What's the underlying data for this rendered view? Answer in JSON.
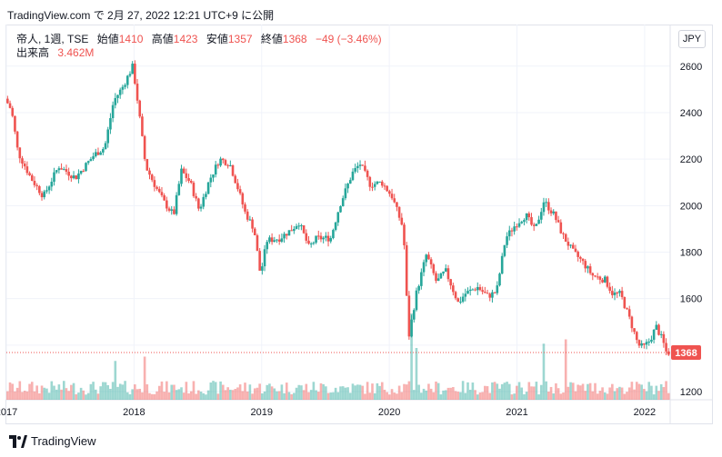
{
  "header": {
    "caption": "TradingView.com で 2月 27, 2022 12:21 UTC+9 に公開"
  },
  "legend": {
    "symbol": "帝人, 1週, TSE",
    "open_label": "始値",
    "open": "1410",
    "high_label": "高値",
    "high": "1423",
    "low_label": "安値",
    "low": "1357",
    "close_label": "終値",
    "close": "1368",
    "change": "−49 (−3.46%)",
    "volume_label": "出来高",
    "volume": "3.462M"
  },
  "currency_button": "JPY",
  "footer": {
    "brand": "TradingView"
  },
  "colors": {
    "up": "#26a69a",
    "down": "#ef5350",
    "grid": "#f0f3fa",
    "axis_text": "#131722"
  },
  "chart_data": {
    "type": "candlestick",
    "interval": "1W",
    "y_ticks": [
      1200,
      1400,
      1600,
      1800,
      2000,
      2200,
      2400,
      2600
    ],
    "x_ticks": [
      "2017",
      "2018",
      "2019",
      "2020",
      "2021",
      "2022"
    ],
    "last_price": 1368,
    "last_price_label": "1368",
    "x_range": [
      2017.0,
      2022.2
    ],
    "y_range": [
      1165,
      2650
    ],
    "grid": true,
    "anchors": [
      [
        2017.0,
        2460
      ],
      [
        2017.05,
        2410
      ],
      [
        2017.1,
        2230
      ],
      [
        2017.2,
        2120
      ],
      [
        2017.3,
        2040
      ],
      [
        2017.42,
        2170
      ],
      [
        2017.55,
        2120
      ],
      [
        2017.7,
        2220
      ],
      [
        2017.78,
        2250
      ],
      [
        2017.85,
        2450
      ],
      [
        2017.92,
        2510
      ],
      [
        2018.0,
        2600
      ],
      [
        2018.04,
        2440
      ],
      [
        2018.1,
        2170
      ],
      [
        2018.18,
        2080
      ],
      [
        2018.25,
        2010
      ],
      [
        2018.32,
        1960
      ],
      [
        2018.38,
        2150
      ],
      [
        2018.45,
        2100
      ],
      [
        2018.52,
        1980
      ],
      [
        2018.6,
        2110
      ],
      [
        2018.68,
        2200
      ],
      [
        2018.76,
        2180
      ],
      [
        2018.82,
        2080
      ],
      [
        2018.88,
        1970
      ],
      [
        2018.95,
        1900
      ],
      [
        2019.0,
        1700
      ],
      [
        2019.05,
        1850
      ],
      [
        2019.15,
        1860
      ],
      [
        2019.25,
        1900
      ],
      [
        2019.3,
        1930
      ],
      [
        2019.38,
        1820
      ],
      [
        2019.44,
        1860
      ],
      [
        2019.55,
        1860
      ],
      [
        2019.62,
        2000
      ],
      [
        2019.72,
        2140
      ],
      [
        2019.78,
        2180
      ],
      [
        2019.86,
        2090
      ],
      [
        2019.95,
        2100
      ],
      [
        2020.03,
        2040
      ],
      [
        2020.12,
        1900
      ],
      [
        2020.16,
        1430
      ],
      [
        2020.22,
        1620
      ],
      [
        2020.3,
        1790
      ],
      [
        2020.38,
        1670
      ],
      [
        2020.45,
        1720
      ],
      [
        2020.55,
        1580
      ],
      [
        2020.6,
        1620
      ],
      [
        2020.7,
        1650
      ],
      [
        2020.78,
        1610
      ],
      [
        2020.85,
        1630
      ],
      [
        2020.92,
        1860
      ],
      [
        2021.0,
        1920
      ],
      [
        2021.08,
        1960
      ],
      [
        2021.15,
        1890
      ],
      [
        2021.22,
        2020
      ],
      [
        2021.3,
        1960
      ],
      [
        2021.37,
        1870
      ],
      [
        2021.45,
        1800
      ],
      [
        2021.52,
        1760
      ],
      [
        2021.6,
        1700
      ],
      [
        2021.7,
        1680
      ],
      [
        2021.76,
        1620
      ],
      [
        2021.82,
        1620
      ],
      [
        2021.9,
        1500
      ],
      [
        2021.96,
        1400
      ],
      [
        2022.0,
        1390
      ],
      [
        2022.05,
        1420
      ],
      [
        2022.1,
        1480
      ],
      [
        2022.15,
        1420
      ],
      [
        2022.18,
        1368
      ]
    ],
    "volume_spikes": [
      [
        2017.85,
        0.45
      ],
      [
        2018.08,
        0.5
      ],
      [
        2020.16,
        1.0
      ],
      [
        2020.2,
        0.6
      ],
      [
        2021.2,
        0.65
      ],
      [
        2021.38,
        0.7
      ]
    ]
  }
}
